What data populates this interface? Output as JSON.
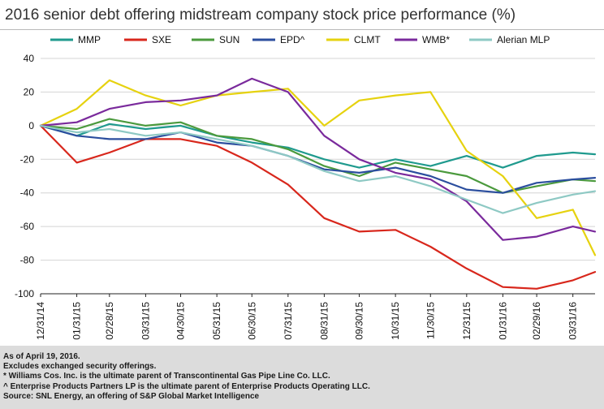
{
  "title": "2016 senior debt offering midstream company stock price performance (%)",
  "notes": [
    "As of April 19, 2016.",
    "Excludes exchanged security offerings.",
    "* Williams Cos. Inc. is the ultimate parent of Transcontinental Gas Pipe Line Co. LLC.",
    "^ Enterprise Products Partners LP is the ultimate parent of Enterprise Products Operating LLC.",
    "Source: SNL Energy, an offering of S&P Global Market Intelligence"
  ],
  "chart_data": {
    "type": "line",
    "title": "2016 senior debt offering midstream company stock price performance (%)",
    "xlabel": "",
    "ylabel": "",
    "ylim": [
      -100,
      40
    ],
    "y_ticks": [
      40,
      20,
      0,
      -20,
      -40,
      -60,
      -80,
      -100
    ],
    "x_ticks": [
      "12/31/14",
      "01/31/15",
      "02/28/15",
      "03/31/15",
      "04/30/15",
      "05/31/15",
      "06/30/15",
      "07/31/15",
      "08/31/15",
      "09/30/15",
      "10/31/15",
      "11/30/15",
      "12/31/15",
      "01/31/16",
      "02/29/16",
      "03/31/16"
    ],
    "x_range": [
      "12/31/14",
      "04/19/16"
    ],
    "grid": "horizontal",
    "legend_position": "top",
    "series": [
      {
        "name": "MMP",
        "color": "#1f9a8e",
        "x": [
          "12/31/14",
          "01/31/15",
          "02/28/15",
          "03/31/15",
          "04/30/15",
          "05/31/15",
          "06/30/15",
          "07/31/15",
          "08/31/15",
          "09/30/15",
          "10/31/15",
          "11/30/15",
          "12/31/15",
          "01/31/16",
          "02/29/16",
          "03/31/16",
          "04/19/16"
        ],
        "y": [
          0,
          -6,
          1,
          -2,
          0,
          -6,
          -10,
          -13,
          -20,
          -25,
          -20,
          -24,
          -18,
          -25,
          -18,
          -16,
          -17
        ]
      },
      {
        "name": "SXE",
        "color": "#d8271c",
        "x": [
          "12/31/14",
          "01/31/15",
          "02/28/15",
          "03/31/15",
          "04/30/15",
          "05/31/15",
          "06/30/15",
          "07/31/15",
          "08/31/15",
          "09/30/15",
          "10/31/15",
          "11/30/15",
          "12/31/15",
          "01/31/16",
          "02/29/16",
          "03/31/16",
          "04/19/16"
        ],
        "y": [
          0,
          -22,
          -16,
          -8,
          -8,
          -12,
          -22,
          -35,
          -55,
          -63,
          -62,
          -72,
          -85,
          -96,
          -97,
          -92,
          -87
        ]
      },
      {
        "name": "SUN",
        "color": "#4b9a3d",
        "x": [
          "12/31/14",
          "01/31/15",
          "02/28/15",
          "03/31/15",
          "04/30/15",
          "05/31/15",
          "06/30/15",
          "07/31/15",
          "08/31/15",
          "09/30/15",
          "10/31/15",
          "11/30/15",
          "12/31/15",
          "01/31/16",
          "02/29/16",
          "03/31/16",
          "04/19/16"
        ],
        "y": [
          0,
          -2,
          4,
          0,
          2,
          -6,
          -8,
          -14,
          -24,
          -30,
          -22,
          -26,
          -30,
          -40,
          -36,
          -32,
          -33
        ]
      },
      {
        "name": "EPD^",
        "color": "#2b4e9e",
        "x": [
          "12/31/14",
          "01/31/15",
          "02/28/15",
          "03/31/15",
          "04/30/15",
          "05/31/15",
          "06/30/15",
          "07/31/15",
          "08/31/15",
          "09/30/15",
          "10/31/15",
          "11/30/15",
          "12/31/15",
          "01/31/16",
          "02/29/16",
          "03/31/16",
          "04/19/16"
        ],
        "y": [
          0,
          -6,
          -8,
          -8,
          -4,
          -10,
          -12,
          -18,
          -26,
          -28,
          -25,
          -30,
          -38,
          -40,
          -34,
          -32,
          -31
        ]
      },
      {
        "name": "CLMT",
        "color": "#e6d20f",
        "x": [
          "12/31/14",
          "01/31/15",
          "02/28/15",
          "03/31/15",
          "04/30/15",
          "05/31/15",
          "06/30/15",
          "07/31/15",
          "08/31/15",
          "09/30/15",
          "10/31/15",
          "11/30/15",
          "12/31/15",
          "01/31/16",
          "02/29/16",
          "03/31/16",
          "04/19/16"
        ],
        "y": [
          0,
          10,
          27,
          18,
          12,
          18,
          20,
          22,
          0,
          15,
          18,
          20,
          -15,
          -30,
          -55,
          -50,
          -77
        ]
      },
      {
        "name": "WMB*",
        "color": "#7a2a9c",
        "x": [
          "12/31/14",
          "01/31/15",
          "02/28/15",
          "03/31/15",
          "04/30/15",
          "05/31/15",
          "06/30/15",
          "07/31/15",
          "08/31/15",
          "09/30/15",
          "10/31/15",
          "11/30/15",
          "12/31/15",
          "01/31/16",
          "02/29/16",
          "03/31/16",
          "04/19/16"
        ],
        "y": [
          0,
          2,
          10,
          14,
          15,
          18,
          28,
          20,
          -6,
          -20,
          -28,
          -32,
          -45,
          -68,
          -66,
          -60,
          -63
        ]
      },
      {
        "name": "Alerian MLP",
        "color": "#8ec9c4",
        "x": [
          "12/31/14",
          "01/31/15",
          "02/28/15",
          "03/31/15",
          "04/30/15",
          "05/31/15",
          "06/30/15",
          "07/31/15",
          "08/31/15",
          "09/30/15",
          "10/31/15",
          "11/30/15",
          "12/31/15",
          "01/31/16",
          "02/29/16",
          "03/31/16",
          "04/19/16"
        ],
        "y": [
          0,
          -4,
          -2,
          -6,
          -4,
          -8,
          -12,
          -18,
          -27,
          -33,
          -30,
          -36,
          -44,
          -52,
          -46,
          -41,
          -39
        ]
      }
    ]
  }
}
